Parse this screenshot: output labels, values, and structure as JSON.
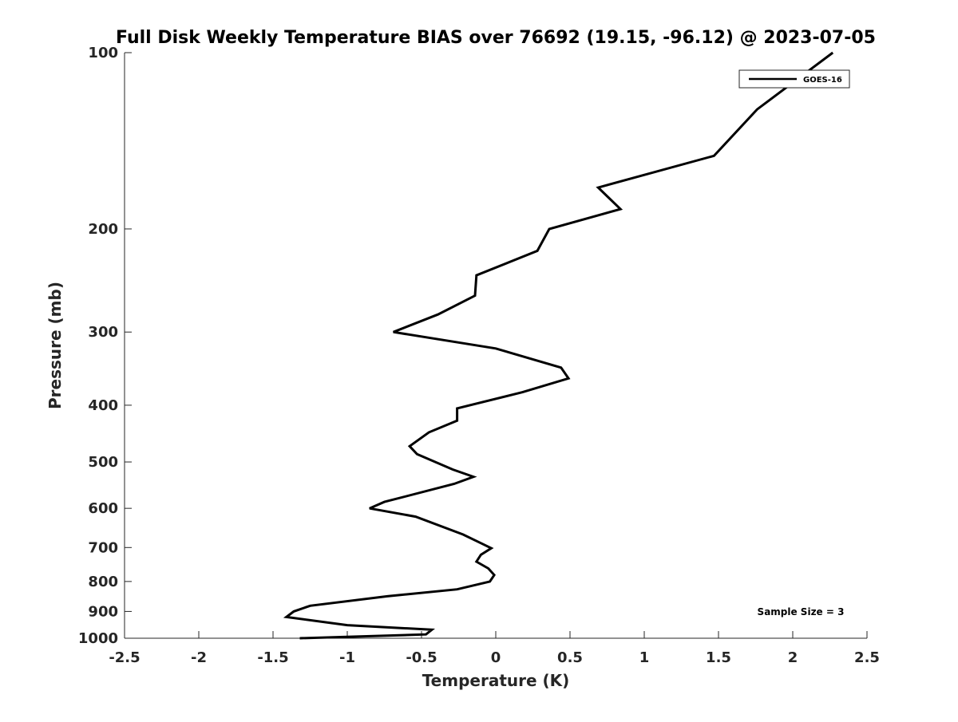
{
  "chart_data": {
    "type": "line",
    "title": "Full Disk Weekly Temperature BIAS over 76692 (19.15, -96.12) @ 2023-07-05",
    "xlabel": "Temperature (K)",
    "ylabel": "Pressure (mb)",
    "xlim": [
      -2.5,
      2.5
    ],
    "ylim": [
      100,
      1000
    ],
    "y_scale": "log",
    "y_reversed": true,
    "grid": false,
    "x_ticks": [
      "-2.5",
      "-2",
      "-1.5",
      "-1",
      "-0.5",
      "0",
      "0.5",
      "1",
      "1.5",
      "2",
      "2.5"
    ],
    "y_ticks": [
      "100",
      "200",
      "300",
      "400",
      "500",
      "600",
      "700",
      "800",
      "900",
      "1000"
    ],
    "legend": {
      "position": "top-right",
      "entries": [
        "GOES-16"
      ]
    },
    "annotation": "Sample Size = 3",
    "series": [
      {
        "name": "GOES-16",
        "color": "#000000",
        "points": [
          {
            "x": 2.27,
            "y": 100
          },
          {
            "x": 1.76,
            "y": 125
          },
          {
            "x": 1.47,
            "y": 150
          },
          {
            "x": 0.69,
            "y": 170
          },
          {
            "x": 0.84,
            "y": 185
          },
          {
            "x": 0.36,
            "y": 200
          },
          {
            "x": 0.28,
            "y": 218
          },
          {
            "x": -0.13,
            "y": 240
          },
          {
            "x": -0.14,
            "y": 260
          },
          {
            "x": -0.39,
            "y": 280
          },
          {
            "x": -0.69,
            "y": 300
          },
          {
            "x": 0.0,
            "y": 320
          },
          {
            "x": 0.44,
            "y": 345
          },
          {
            "x": 0.49,
            "y": 360
          },
          {
            "x": 0.18,
            "y": 380
          },
          {
            "x": -0.26,
            "y": 405
          },
          {
            "x": -0.26,
            "y": 425
          },
          {
            "x": -0.45,
            "y": 445
          },
          {
            "x": -0.58,
            "y": 470
          },
          {
            "x": -0.53,
            "y": 485
          },
          {
            "x": -0.29,
            "y": 515
          },
          {
            "x": -0.15,
            "y": 530
          },
          {
            "x": -0.28,
            "y": 545
          },
          {
            "x": -0.75,
            "y": 585
          },
          {
            "x": -0.85,
            "y": 600
          },
          {
            "x": -0.54,
            "y": 620
          },
          {
            "x": -0.22,
            "y": 665
          },
          {
            "x": -0.1,
            "y": 688
          },
          {
            "x": -0.03,
            "y": 702
          },
          {
            "x": -0.1,
            "y": 720
          },
          {
            "x": -0.13,
            "y": 740
          },
          {
            "x": -0.05,
            "y": 760
          },
          {
            "x": -0.01,
            "y": 780
          },
          {
            "x": -0.04,
            "y": 800
          },
          {
            "x": -0.26,
            "y": 825
          },
          {
            "x": -0.73,
            "y": 848
          },
          {
            "x": -1.25,
            "y": 880
          },
          {
            "x": -1.36,
            "y": 900
          },
          {
            "x": -1.41,
            "y": 920
          },
          {
            "x": -1.0,
            "y": 950
          },
          {
            "x": -0.43,
            "y": 967
          },
          {
            "x": -0.47,
            "y": 985
          },
          {
            "x": -1.32,
            "y": 1000
          }
        ]
      }
    ]
  }
}
